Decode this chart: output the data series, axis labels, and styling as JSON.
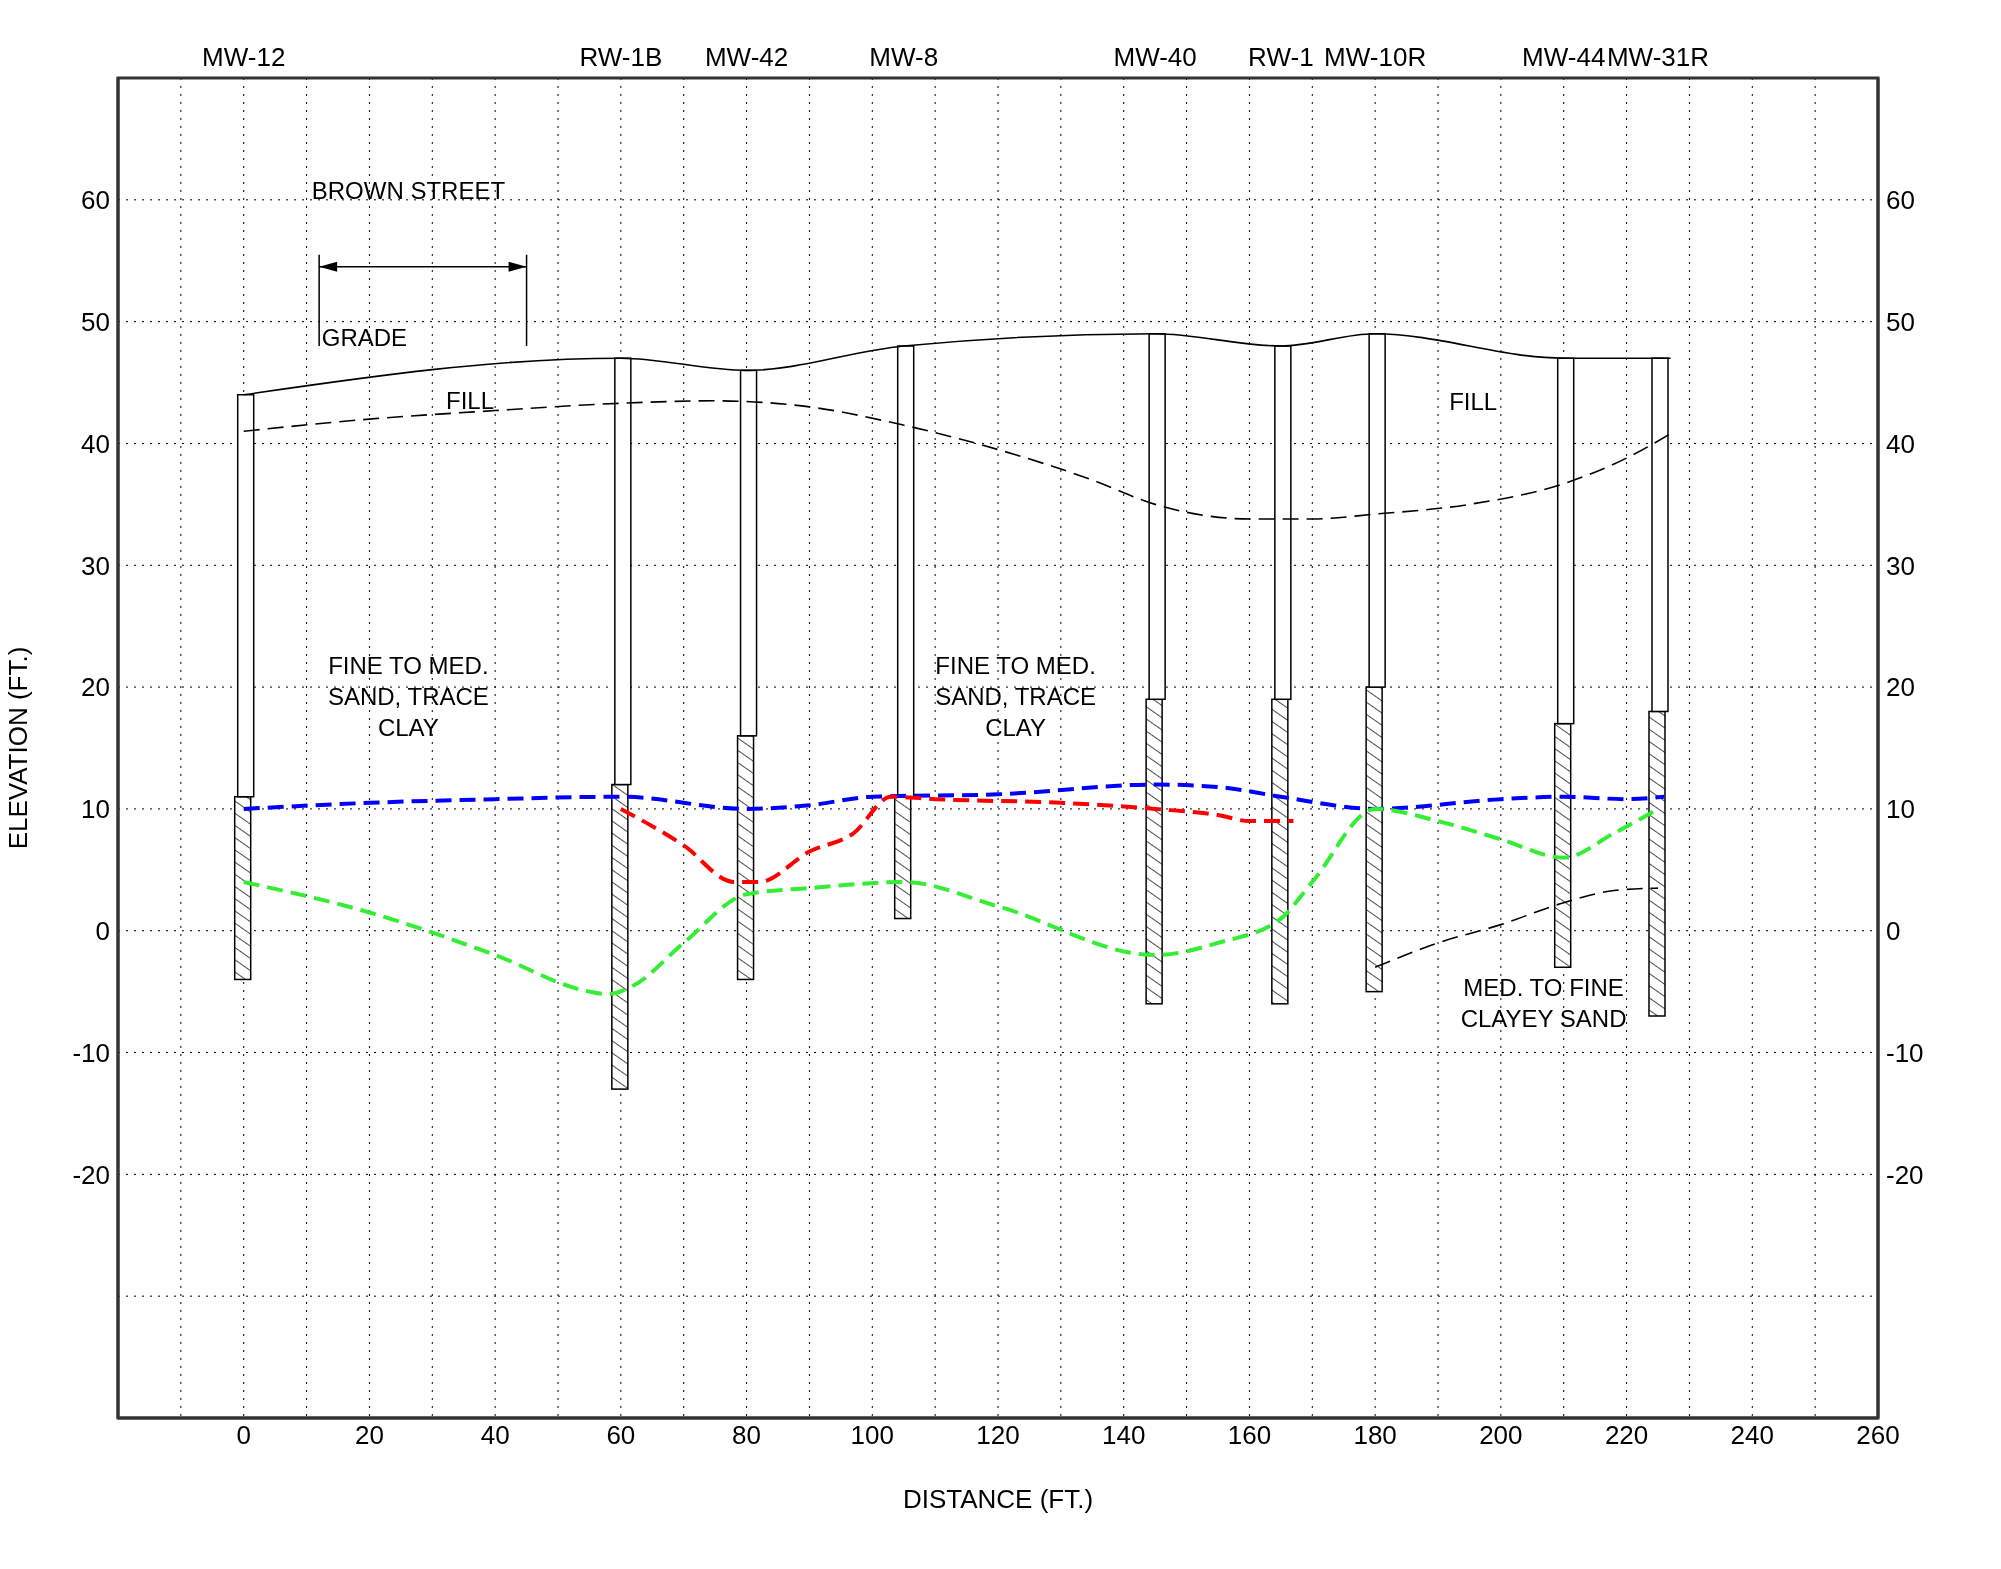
{
  "chart_data": {
    "type": "line",
    "xlabel": "DISTANCE  (FT.)",
    "ylabel": "ELEVATION (FT.)",
    "xlim": [
      -20,
      260
    ],
    "ylim": [
      -40,
      70
    ],
    "y2lim": [
      -40,
      70
    ],
    "xticks": [
      {
        "value": -10,
        "label": null
      },
      0,
      {
        "value": 10,
        "label": null
      },
      20,
      {
        "value": 30,
        "label": null
      },
      40,
      {
        "value": 50,
        "label": null
      },
      60,
      {
        "value": 70,
        "label": null
      },
      80,
      {
        "value": 90,
        "label": null
      },
      100,
      {
        "value": 110,
        "label": null
      },
      120,
      {
        "value": 130,
        "label": null
      },
      140,
      {
        "value": 150,
        "label": null
      },
      160,
      {
        "value": 170,
        "label": null
      },
      180,
      {
        "value": 190,
        "label": null
      },
      200,
      {
        "value": 210,
        "label": null
      },
      220,
      {
        "value": 230,
        "label": null
      },
      240,
      {
        "value": 250,
        "label": null
      },
      260
    ],
    "yticks": [
      {
        "value": -30,
        "label": null
      },
      -20,
      -10,
      0,
      10,
      20,
      30,
      40,
      50,
      60
    ],
    "y2ticks": [
      -20,
      -10,
      0,
      10,
      20,
      30,
      40,
      50,
      60
    ],
    "grid": true,
    "stacked": true,
    "series": [
      {
        "type": "bar",
        "color": "#000000",
        "x": [
          0,
          60,
          80,
          105,
          145,
          165,
          180,
          210,
          225
        ],
        "base": [
          -4,
          -13,
          -4,
          1,
          -6,
          -6,
          -5,
          -3,
          -7
        ],
        "values": [
          15,
          25,
          20,
          10,
          25,
          25,
          25,
          20,
          25
        ]
      },
      {
        "type": "bar",
        "color": "#ffffff",
        "x": [
          0,
          60,
          80,
          105,
          145,
          165,
          180,
          210,
          225
        ],
        "values": [
          33,
          35,
          30,
          37,
          30,
          29,
          29,
          30,
          29
        ]
      },
      {
        "color": "#000000",
        "line_style": "solid",
        "x": [
          0,
          60,
          80,
          105,
          145,
          165,
          180,
          210,
          227
        ],
        "values": [
          44,
          47,
          46,
          48,
          49,
          48,
          49,
          47,
          47
        ]
      },
      {
        "color": "#000000",
        "line_style": "dashed",
        "x": [
          0,
          20,
          40,
          60,
          75,
          90,
          105,
          120,
          135,
          145,
          160,
          170,
          180,
          195,
          210,
          220,
          227
        ],
        "values": [
          41,
          42,
          42.7,
          43.3,
          43.5,
          43,
          41.5,
          39.5,
          37,
          35,
          33.8,
          33.8,
          34.2,
          35,
          36.7,
          38.8,
          40.8
        ]
      },
      {
        "color": "#0000ff",
        "line_style": "dashed",
        "x": [
          0,
          20,
          40,
          60,
          80,
          90,
          100,
          120,
          145,
          155,
          165,
          180,
          200,
          210,
          220,
          226
        ],
        "values": [
          10,
          10.5,
          10.8,
          11,
          10,
          10.3,
          11,
          11.2,
          12,
          11.8,
          11,
          10,
          10.8,
          11,
          10.8,
          11
        ]
      },
      {
        "color": "#ff0000",
        "line_style": "dashed",
        "x": [
          60,
          70,
          78,
          82,
          90,
          97,
          103,
          110,
          130,
          145,
          155,
          160,
          167
        ],
        "values": [
          10,
          7,
          4,
          4,
          6.5,
          8,
          11,
          10.8,
          10.5,
          10,
          9.5,
          9,
          9
        ]
      },
      {
        "color": "#33ee33",
        "line_style": "dashed",
        "x": [
          0,
          20,
          40,
          55,
          58,
          62,
          70,
          80,
          90,
          105,
          120,
          145,
          155,
          165,
          170,
          180,
          190,
          200,
          210,
          218,
          225
        ],
        "values": [
          4,
          1.5,
          -2,
          -5,
          -5.2,
          -4.5,
          -1,
          3,
          3.5,
          4,
          2,
          -2,
          -1,
          1,
          4,
          10,
          9,
          7.5,
          6,
          8,
          10
        ]
      },
      {
        "color": "#000000",
        "line_style": "dashed",
        "x": [
          180,
          190,
          200,
          210,
          218,
          225
        ],
        "values": [
          -3,
          -1,
          0.5,
          2.3,
          3.3,
          3.5
        ]
      }
    ],
    "annotations": [
      "MW-12",
      "RW-1B",
      "MW-42",
      "MW-8",
      "MW-40",
      "RW-1",
      "MW-10R",
      "MW-44",
      "MW-31R",
      "BROWN STREET",
      "GRADE",
      "FILL",
      "FILL",
      "FINE TO MED. SAND, TRACE CLAY",
      "FINE TO MED. SAND, TRACE CLAY",
      "MED. TO FINE CLAYEY SAND"
    ]
  }
}
